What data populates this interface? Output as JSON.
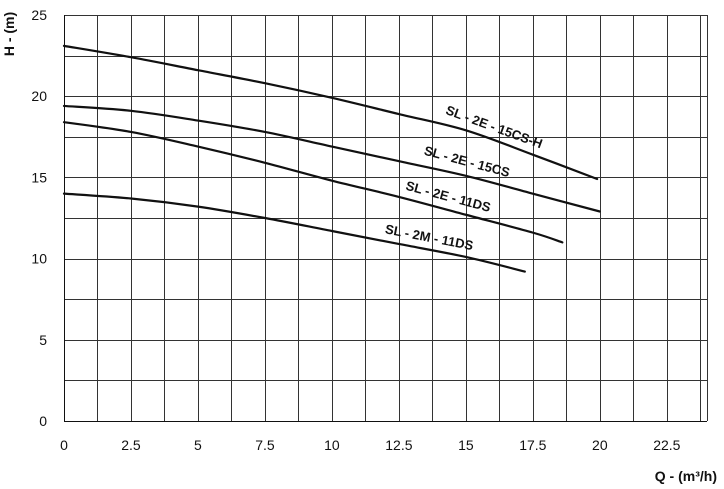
{
  "chart_data": {
    "type": "line",
    "title": "",
    "xlabel": "Q - (m³/h)",
    "ylabel": "H - (m)",
    "xlim": [
      0,
      24
    ],
    "ylim": [
      0,
      25
    ],
    "x_ticks": [
      0,
      2.5,
      5,
      7.5,
      10,
      12.5,
      15,
      17.5,
      20,
      22.5
    ],
    "x_tick_labels": [
      "0",
      "2.5",
      "5",
      "7.5",
      "10",
      "12.5",
      "15",
      "17.5",
      "20",
      "22.5"
    ],
    "y_ticks": [
      0,
      5,
      10,
      15,
      20,
      25
    ],
    "y_tick_labels": [
      "0",
      "5",
      "10",
      "15",
      "20",
      "25"
    ],
    "grid": true,
    "legend": "none (labels placed on curves)",
    "series": [
      {
        "name": "SL - 2E - 15CS-H",
        "color": "#111111",
        "points": [
          [
            0,
            23.1
          ],
          [
            2.5,
            22.4
          ],
          [
            5,
            21.6
          ],
          [
            7.5,
            20.8
          ],
          [
            10,
            19.9
          ],
          [
            12.5,
            18.9
          ],
          [
            15,
            17.9
          ],
          [
            17.5,
            16.4
          ],
          [
            19.9,
            14.9
          ]
        ]
      },
      {
        "name": "SL - 2E - 15CS",
        "color": "#111111",
        "points": [
          [
            0,
            19.4
          ],
          [
            2.5,
            19.1
          ],
          [
            5,
            18.5
          ],
          [
            7.5,
            17.8
          ],
          [
            10,
            16.9
          ],
          [
            12.5,
            16.0
          ],
          [
            15,
            15.1
          ],
          [
            17.5,
            14.0
          ],
          [
            20,
            12.9
          ]
        ]
      },
      {
        "name": "SL - 2E - 11DS",
        "color": "#111111",
        "points": [
          [
            0,
            18.4
          ],
          [
            2.5,
            17.8
          ],
          [
            5,
            16.9
          ],
          [
            7.5,
            15.9
          ],
          [
            10,
            14.8
          ],
          [
            12.5,
            13.8
          ],
          [
            15,
            12.7
          ],
          [
            17.5,
            11.6
          ],
          [
            18.6,
            11.0
          ]
        ]
      },
      {
        "name": "SL - 2M - 11DS",
        "color": "#111111",
        "points": [
          [
            0,
            14.0
          ],
          [
            2.5,
            13.7
          ],
          [
            5,
            13.2
          ],
          [
            7.5,
            12.5
          ],
          [
            10,
            11.7
          ],
          [
            12.5,
            10.9
          ],
          [
            15,
            10.1
          ],
          [
            17.2,
            9.2
          ]
        ]
      }
    ]
  }
}
